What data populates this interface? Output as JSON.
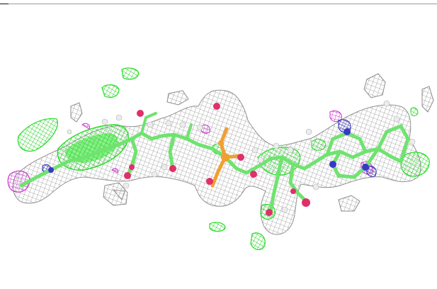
{
  "viewer": {
    "mesh_color": "#8c8c8c",
    "positive_density_color": "#22dd22",
    "negative_density_color": "#cc33cc",
    "carbon_color": "#6fe36f",
    "oxygen_color": "#e0306a",
    "nitrogen_color": "#3838c8",
    "phosphorus_color": "#f0a030",
    "hydrogen_color": "#e8e8e8"
  }
}
